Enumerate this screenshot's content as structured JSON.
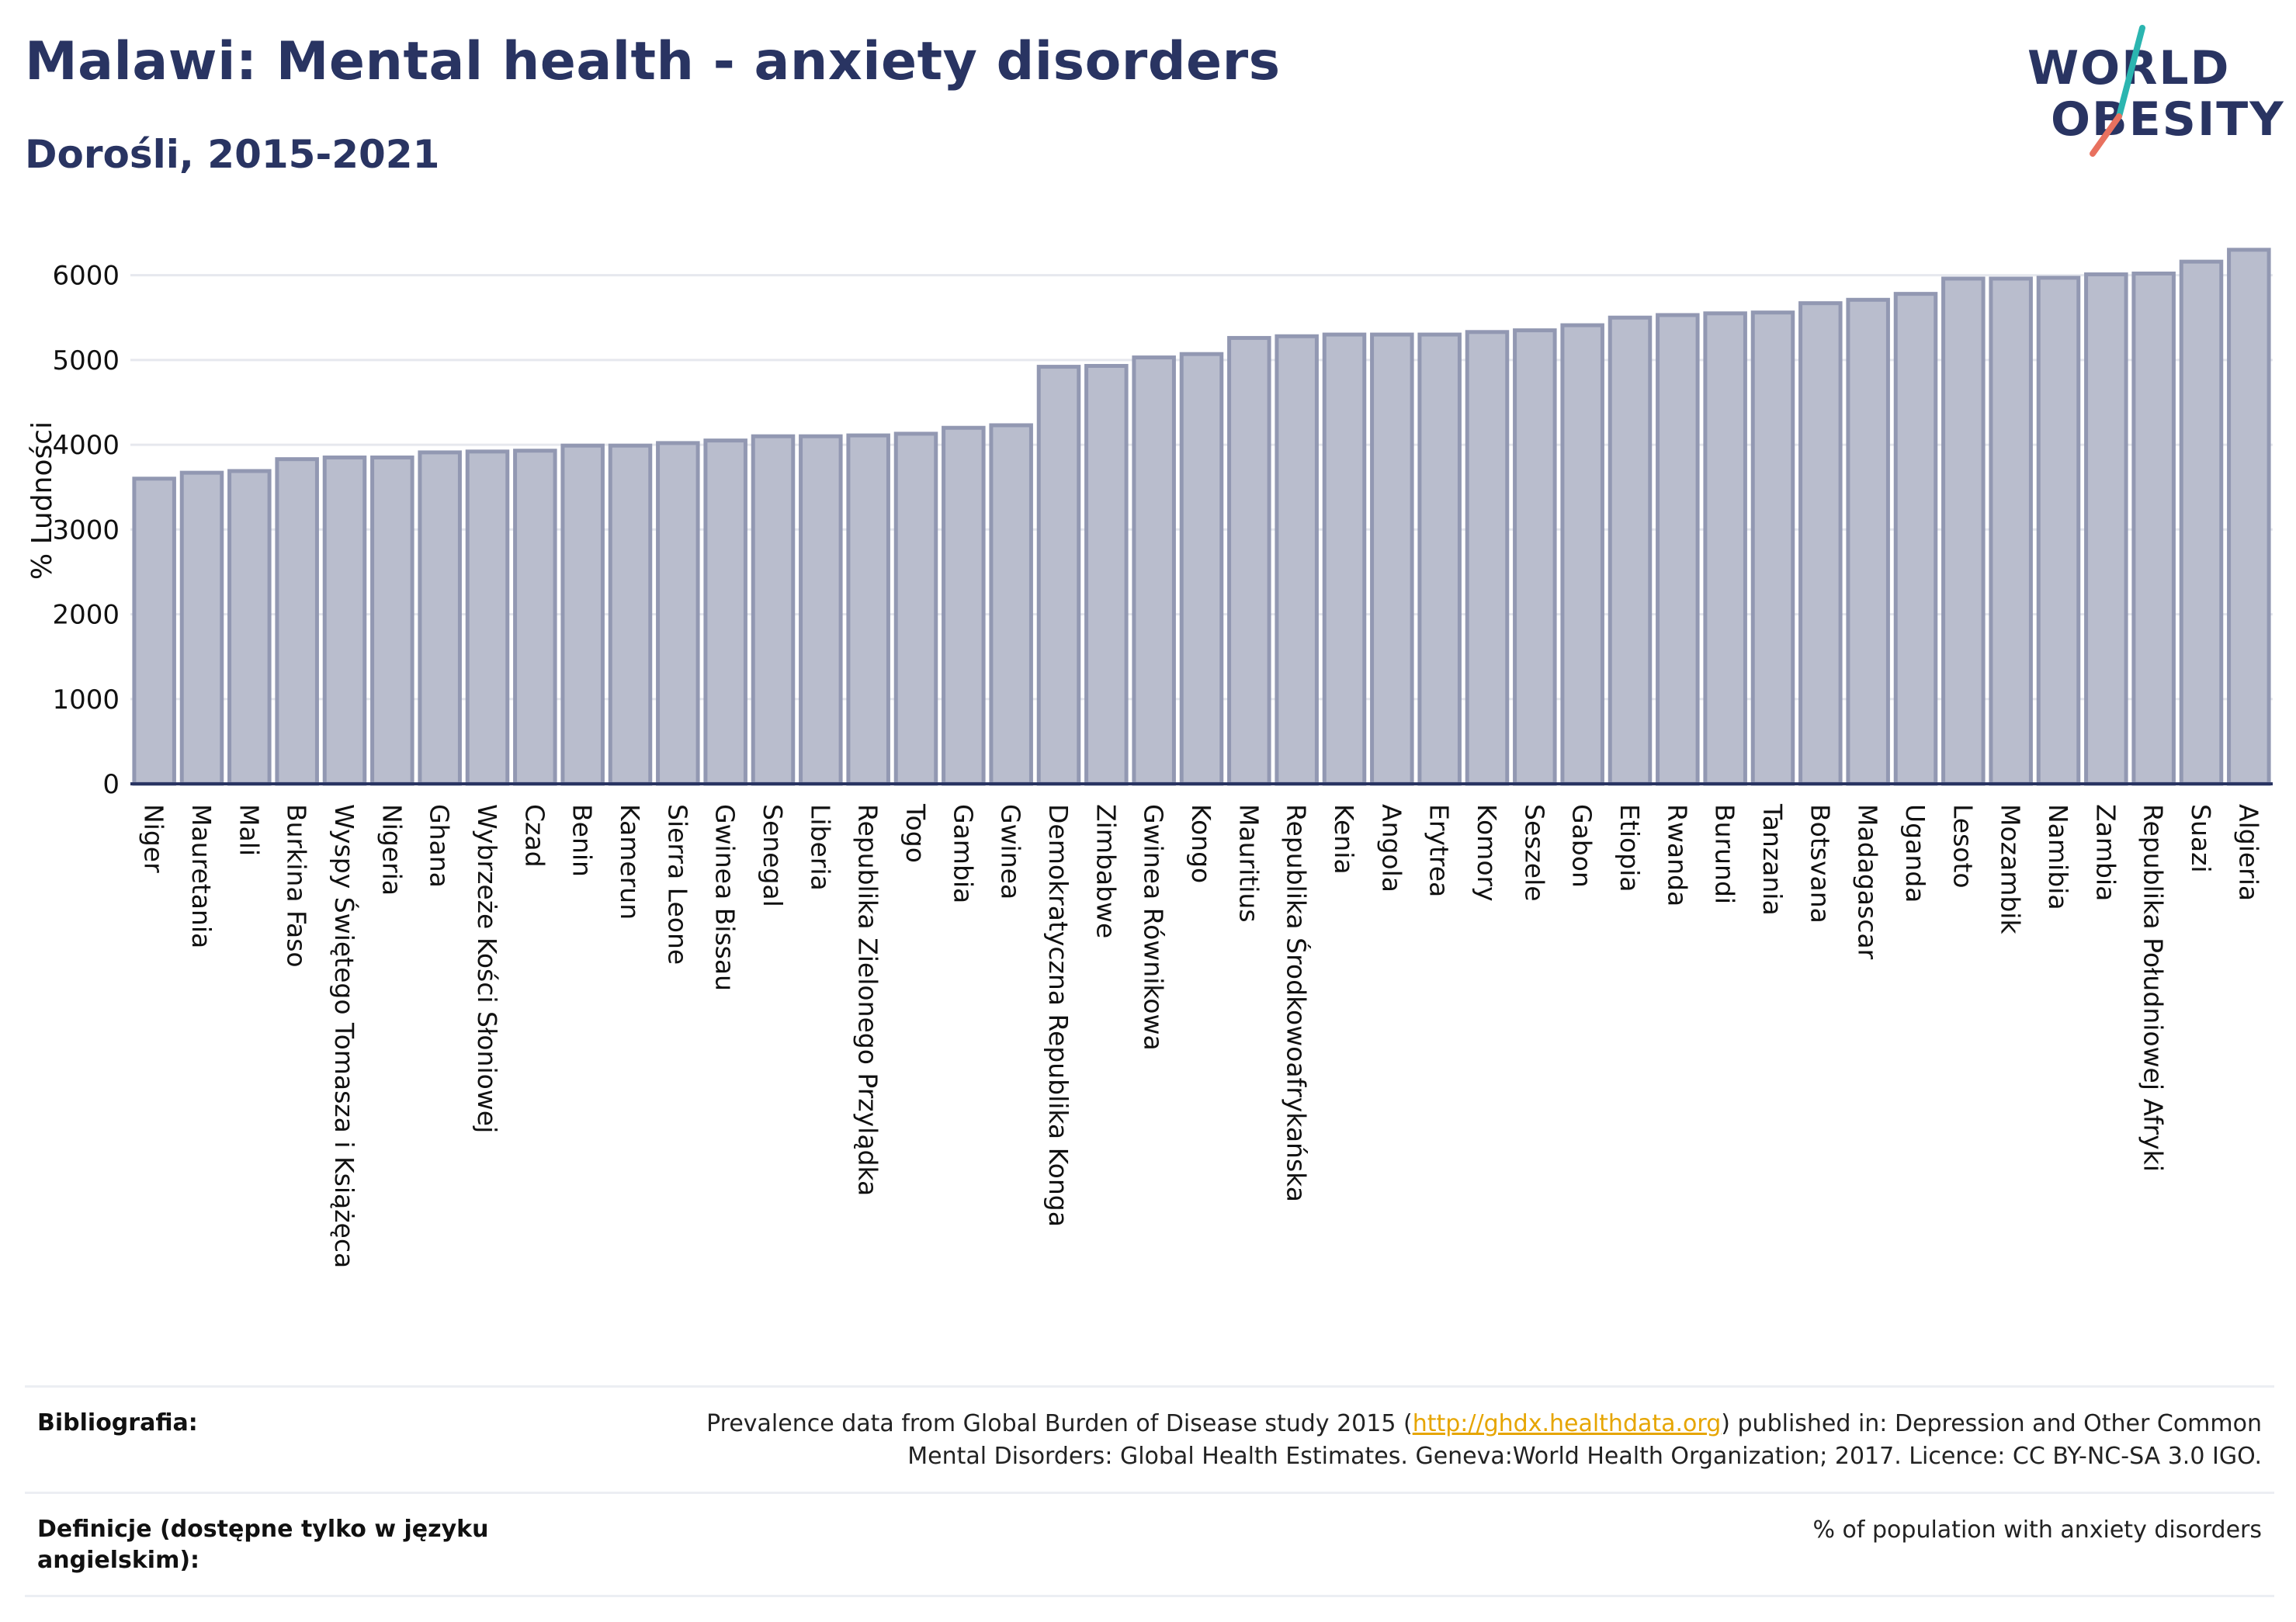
{
  "header": {
    "title": "Malawi: Mental health - anxiety disorders",
    "subtitle": "Dorośli, 2015-2021"
  },
  "logo": {
    "line1": "WORLD",
    "line2": "OBESITY",
    "accent_teal": "#2bb5b0",
    "accent_coral": "#e8715f"
  },
  "colors": {
    "title": "#293462",
    "bar_fill": "#b9bdcd",
    "bar_stroke": "#9298b2",
    "grid": "#e6e8ee",
    "axis": "#293462"
  },
  "chart_data": {
    "type": "bar",
    "ylabel": "% Ludności",
    "ylim": [
      0,
      6500
    ],
    "yticks": [
      0,
      1000,
      2000,
      3000,
      4000,
      5000,
      6000
    ],
    "grid": true,
    "categories": [
      "Niger",
      "Mauretania",
      "Mali",
      "Burkina Faso",
      "Wyspy Świętego Tomasza i Książęca",
      "Nigeria",
      "Ghana",
      "Wybrzeże Kości Słoniowej",
      "Czad",
      "Benin",
      "Kamerun",
      "Sierra Leone",
      "Gwinea Bissau",
      "Senegal",
      "Liberia",
      "Republika Zielonego Przylądka",
      "Togo",
      "Gambia",
      "Gwinea",
      "Demokratyczna Republika Konga",
      "Zimbabwe",
      "Gwinea Równikowa",
      "Kongo",
      "Mauritius",
      "Republika Środkowoafrykańska",
      "Kenia",
      "Angola",
      "Erytrea",
      "Komory",
      "Seszele",
      "Gabon",
      "Etiopia",
      "Rwanda",
      "Burundi",
      "Tanzania",
      "Botsvana",
      "Madagascar",
      "Uganda",
      "Lesoto",
      "Mozambik",
      "Namibia",
      "Zambia",
      "Republika Południowej Afryki",
      "Suazi",
      "Algieria"
    ],
    "values": [
      3600,
      3670,
      3690,
      3830,
      3850,
      3850,
      3910,
      3920,
      3930,
      3990,
      3990,
      4020,
      4050,
      4100,
      4100,
      4110,
      4130,
      4200,
      4230,
      4920,
      4930,
      5030,
      5070,
      5260,
      5280,
      5300,
      5300,
      5300,
      5330,
      5350,
      5410,
      5500,
      5530,
      5550,
      5560,
      5670,
      5710,
      5780,
      5960,
      5960,
      5970,
      6010,
      6020,
      6160,
      6300
    ]
  },
  "references": {
    "bibliography_label": "Bibliografia:",
    "bibliography_text_1": "Prevalence data from Global Burden of Disease study 2015 (",
    "bibliography_link": "http://ghdx.healthdata.org",
    "bibliography_text_2": ") published in: Depression and Other Common",
    "bibliography_text_3": "Mental Disorders: Global Health Estimates. Geneva:World Health Organization; 2017. Licence: CC BY-NC-SA 3.0 IGO.",
    "definitions_label": "Definicje (dostępne tylko w języku angielskim):",
    "definitions_text": "% of population with anxiety disorders"
  }
}
